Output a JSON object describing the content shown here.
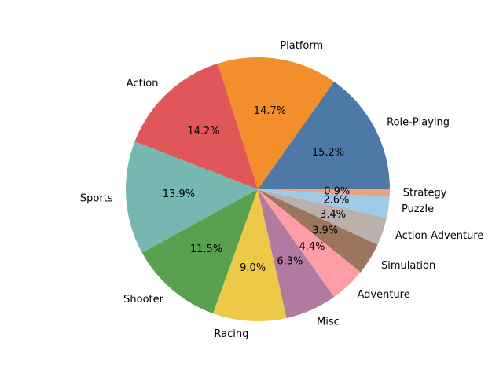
{
  "chart_data": {
    "type": "pie",
    "start_angle_deg": 0,
    "direction": "counterclockwise",
    "slices": [
      {
        "label": "Role-Playing",
        "value": 15.2,
        "pct_label": "15.2%",
        "color": "#4e79a7"
      },
      {
        "label": "Platform",
        "value": 14.7,
        "pct_label": "14.7%",
        "color": "#f28e2b"
      },
      {
        "label": "Action",
        "value": 14.2,
        "pct_label": "14.2%",
        "color": "#e15759"
      },
      {
        "label": "Sports",
        "value": 13.9,
        "pct_label": "13.9%",
        "color": "#76b7b2"
      },
      {
        "label": "Shooter",
        "value": 11.5,
        "pct_label": "11.5%",
        "color": "#59a14f"
      },
      {
        "label": "Racing",
        "value": 9.0,
        "pct_label": "9.0%",
        "color": "#edc948"
      },
      {
        "label": "Misc",
        "value": 6.3,
        "pct_label": "6.3%",
        "color": "#b07aa1"
      },
      {
        "label": "Adventure",
        "value": 4.4,
        "pct_label": "4.4%",
        "color": "#ff9da7"
      },
      {
        "label": "Simulation",
        "value": 3.9,
        "pct_label": "3.9%",
        "color": "#9c755f"
      },
      {
        "label": "Action-Adventure",
        "value": 3.4,
        "pct_label": "3.4%",
        "color": "#bab0ac"
      },
      {
        "label": "Puzzle",
        "value": 2.6,
        "pct_label": "2.6%",
        "color": "#a0cbe8"
      },
      {
        "label": "Strategy",
        "value": 0.9,
        "pct_label": "0.9%",
        "color": "#f1a07e"
      }
    ]
  }
}
